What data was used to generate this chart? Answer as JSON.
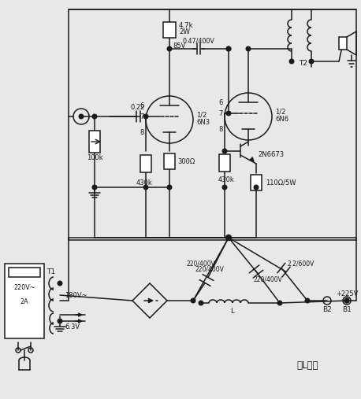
{
  "bg": "#e8e8e8",
  "lc": "#1a1a1a",
  "lw": 1.1,
  "labels": {
    "r_top_val": "4.7k",
    "r_top_w": "2W",
    "v85": "85V",
    "cap_couple": "0.47/400V",
    "tube1_half": "1/2",
    "tube1_type": "6N3",
    "tube2_half": "1/2",
    "tube2_type": "6N6",
    "bjt": "2N6673",
    "r300": "300Ω",
    "r430_left": "430k",
    "r430_right": "430k",
    "r100k": "100k",
    "cap022": "0.22",
    "r110": "110Ω/5W",
    "T2": "T2",
    "T1": "T1",
    "capf1": "220/400V",
    "capf2": "220/400V",
    "capf3": "2.2/600V",
    "L": "L",
    "vcc": "+225V",
    "B1": "B1",
    "B2": "B2",
    "ch": "去L声道",
    "v220": "220V~",
    "v2A": "2A",
    "v180": "180V~",
    "v63": "6.3V",
    "p6": "6",
    "p7": "7",
    "p8": "8"
  }
}
